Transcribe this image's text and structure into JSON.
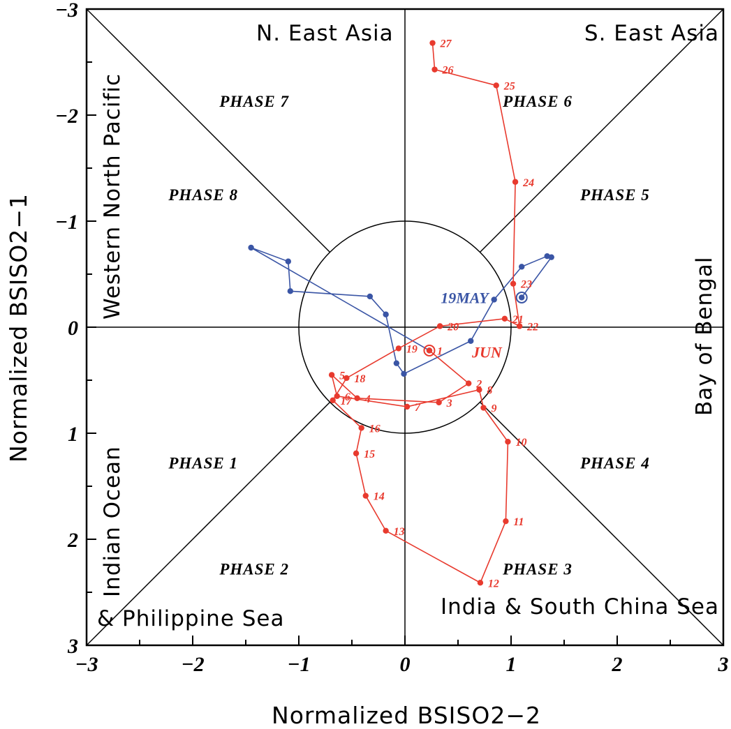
{
  "chart_data": {
    "type": "scatter",
    "subtype": "phase-space trajectory (BSISO phase diagram)",
    "xlabel": "Normalized BSISO2−2",
    "ylabel": "Normalized BSISO2−1",
    "xlim": [
      -3,
      3
    ],
    "ylim": [
      -3,
      3
    ],
    "y_inverted": true,
    "x_ticks": [
      "−3",
      "−2",
      "−1",
      "0",
      "1",
      "2",
      "3"
    ],
    "y_ticks": [
      "−3",
      "−2",
      "−1",
      "0",
      "1",
      "2",
      "3"
    ],
    "unit_circle_radius": 1,
    "phase_labels": [
      {
        "text": "PHASE 1",
        "x": -1.9,
        "y": 1.28
      },
      {
        "text": "PHASE 2",
        "x": -1.42,
        "y": 2.28
      },
      {
        "text": "PHASE 3",
        "x": 1.25,
        "y": 2.28
      },
      {
        "text": "PHASE 4",
        "x": 1.98,
        "y": 1.28
      },
      {
        "text": "PHASE 5",
        "x": 1.98,
        "y": -1.25
      },
      {
        "text": "PHASE 6",
        "x": 1.25,
        "y": -2.13
      },
      {
        "text": "PHASE 7",
        "x": -1.42,
        "y": -2.13
      },
      {
        "text": "PHASE 8",
        "x": -1.9,
        "y": -1.25
      }
    ],
    "region_labels": {
      "top_left": "N. East Asia",
      "top_right": "S. East Asia",
      "left_upper": "Western North Pacific",
      "left_lower": "Indian Ocean",
      "bottom_left": "& Philippine Sea",
      "right": "Bay of Bengal",
      "bottom_right": "India & South China Sea"
    },
    "series": [
      {
        "name": "MAY",
        "color": "#3a55a5",
        "start_label": "19MAY",
        "start_point": {
          "x": 1.1,
          "y": -0.28
        },
        "points": [
          {
            "x": 1.1,
            "y": -0.28
          },
          {
            "x": 1.38,
            "y": -0.66
          },
          {
            "x": 1.34,
            "y": -0.67
          },
          {
            "x": 1.1,
            "y": -0.57
          },
          {
            "x": 0.84,
            "y": -0.26
          },
          {
            "x": 0.62,
            "y": 0.13
          },
          {
            "x": -0.01,
            "y": 0.44
          },
          {
            "x": -0.08,
            "y": 0.34
          },
          {
            "x": -0.18,
            "y": -0.12
          },
          {
            "x": -0.33,
            "y": -0.29
          },
          {
            "x": -1.08,
            "y": -0.34
          },
          {
            "x": -1.1,
            "y": -0.62
          },
          {
            "x": -1.45,
            "y": -0.75
          },
          {
            "x": 0.23,
            "y": 0.22
          }
        ]
      },
      {
        "name": "JUN",
        "color": "#e83a2e",
        "start_label": "JUN",
        "start_point": {
          "x": 0.23,
          "y": 0.22
        },
        "points": [
          {
            "x": 0.23,
            "y": 0.22,
            "label": "1"
          },
          {
            "x": 0.6,
            "y": 0.53,
            "label": "2"
          },
          {
            "x": 0.32,
            "y": 0.71,
            "label": "3"
          },
          {
            "x": -0.45,
            "y": 0.67,
            "label": "4"
          },
          {
            "x": -0.69,
            "y": 0.45,
            "label": "5"
          },
          {
            "x": -0.64,
            "y": 0.65,
            "label": "6"
          },
          {
            "x": 0.02,
            "y": 0.75,
            "label": "7"
          },
          {
            "x": 0.7,
            "y": 0.59,
            "label": "8"
          },
          {
            "x": 0.74,
            "y": 0.76,
            "label": "9"
          },
          {
            "x": 0.97,
            "y": 1.08,
            "label": "10"
          },
          {
            "x": 0.95,
            "y": 1.83,
            "label": "11"
          },
          {
            "x": 0.71,
            "y": 2.41,
            "label": "12"
          },
          {
            "x": -0.18,
            "y": 1.92,
            "label": "13"
          },
          {
            "x": -0.37,
            "y": 1.59,
            "label": "14"
          },
          {
            "x": -0.46,
            "y": 1.19,
            "label": "15"
          },
          {
            "x": -0.41,
            "y": 0.95,
            "label": "16"
          },
          {
            "x": -0.68,
            "y": 0.69,
            "label": "17"
          },
          {
            "x": -0.55,
            "y": 0.48,
            "label": "18"
          },
          {
            "x": -0.06,
            "y": 0.2,
            "label": "19"
          },
          {
            "x": 0.33,
            "y": -0.01,
            "label": "20"
          },
          {
            "x": 0.94,
            "y": -0.08,
            "label": "21"
          },
          {
            "x": 1.08,
            "y": -0.01,
            "label": "22"
          },
          {
            "x": 1.02,
            "y": -0.41,
            "label": "23"
          },
          {
            "x": 1.04,
            "y": -1.37,
            "label": "24"
          },
          {
            "x": 0.86,
            "y": -2.28,
            "label": "25"
          },
          {
            "x": 0.28,
            "y": -2.43,
            "label": "26"
          },
          {
            "x": 0.26,
            "y": -2.68,
            "label": "27"
          }
        ]
      }
    ]
  }
}
